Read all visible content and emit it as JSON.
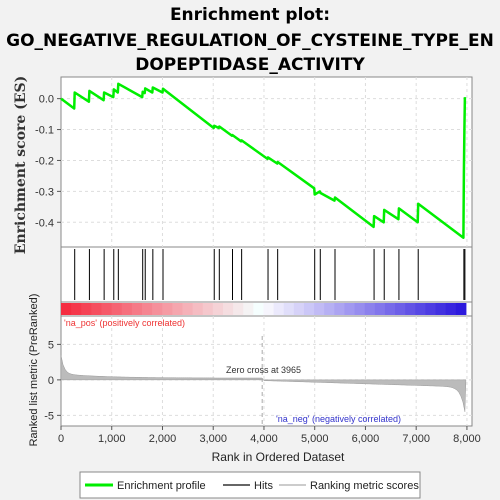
{
  "title": {
    "line1": "Enrichment plot:",
    "line2": "GO_NEGATIVE_REGULATION_OF_CYSTEINE_TYPE_EN",
    "line3": "DOPEPTIDASE_ACTIVITY"
  },
  "chart_data": {
    "type": "line",
    "ylabel_top": "Enrichment score (ES)",
    "ylabel_bottom": "Ranked list metric (PreRanked)",
    "xlabel": "Rank in Ordered Dataset",
    "xlim": [
      0,
      8100
    ],
    "xticks": [
      "0",
      "1,000",
      "2,000",
      "3,000",
      "4,000",
      "5,000",
      "6,000",
      "7,000",
      "8,000"
    ],
    "xtick_values": [
      0,
      1000,
      2000,
      3000,
      4000,
      5000,
      6000,
      7000,
      8000
    ],
    "es_ylim": [
      -0.48,
      0.07
    ],
    "es_yticks": [
      "0.0",
      "-0.1",
      "-0.2",
      "-0.3",
      "-0.4"
    ],
    "es_ytick_values": [
      0.0,
      -0.1,
      -0.2,
      -0.3,
      -0.4
    ],
    "metric_ylim": [
      -6.5,
      9
    ],
    "metric_yticks": [
      "5",
      "0",
      "-5"
    ],
    "metric_ytick_values": [
      5,
      0,
      -5
    ],
    "hits": [
      270,
      560,
      850,
      1040,
      1130,
      1610,
      1660,
      1810,
      2010,
      3020,
      3120,
      3380,
      3560,
      4080,
      4270,
      5000,
      5110,
      5400,
      6170,
      6370,
      6660,
      7040,
      7940,
      7960
    ],
    "enrichment_profile": {
      "x": [
        0,
        260,
        270,
        550,
        560,
        840,
        850,
        1030,
        1040,
        1120,
        1130,
        1600,
        1610,
        1650,
        1660,
        1800,
        1810,
        2000,
        2010,
        3010,
        3020,
        3110,
        3120,
        3370,
        3380,
        3550,
        3560,
        4070,
        4080,
        4260,
        4270,
        4990,
        5000,
        5100,
        5110,
        5390,
        5400,
        6160,
        6170,
        6360,
        6370,
        6650,
        6660,
        7030,
        7040,
        7930,
        7940,
        7950,
        7960
      ],
      "y": [
        0.0,
        -0.032,
        0.02,
        -0.01,
        0.025,
        -0.005,
        0.02,
        0.005,
        0.03,
        0.02,
        0.048,
        0.005,
        0.022,
        0.018,
        0.033,
        0.02,
        0.036,
        0.02,
        0.032,
        -0.095,
        -0.088,
        -0.095,
        -0.09,
        -0.12,
        -0.118,
        -0.138,
        -0.135,
        -0.195,
        -0.19,
        -0.21,
        -0.205,
        -0.29,
        -0.31,
        -0.3,
        -0.305,
        -0.33,
        -0.32,
        -0.415,
        -0.38,
        -0.4,
        -0.36,
        -0.39,
        -0.355,
        -0.4,
        -0.34,
        -0.45,
        -0.235,
        -0.1,
        0.005
      ]
    },
    "zero_cross_label": "Zero cross at 3965",
    "zero_cross": 3965,
    "pos_label": "'na_pos' (positively correlated)",
    "neg_label": "'na_neg' (negatively correlated)",
    "legend": {
      "items": [
        "Enrichment profile",
        "Hits",
        "Ranking metric scores"
      ],
      "placement": "bottom"
    },
    "colors": {
      "profile": "#00ee00",
      "hits": "#000000",
      "metric": "#bbbbbb",
      "pos_text": "#ee3333",
      "neg_text": "#3333cc"
    }
  }
}
